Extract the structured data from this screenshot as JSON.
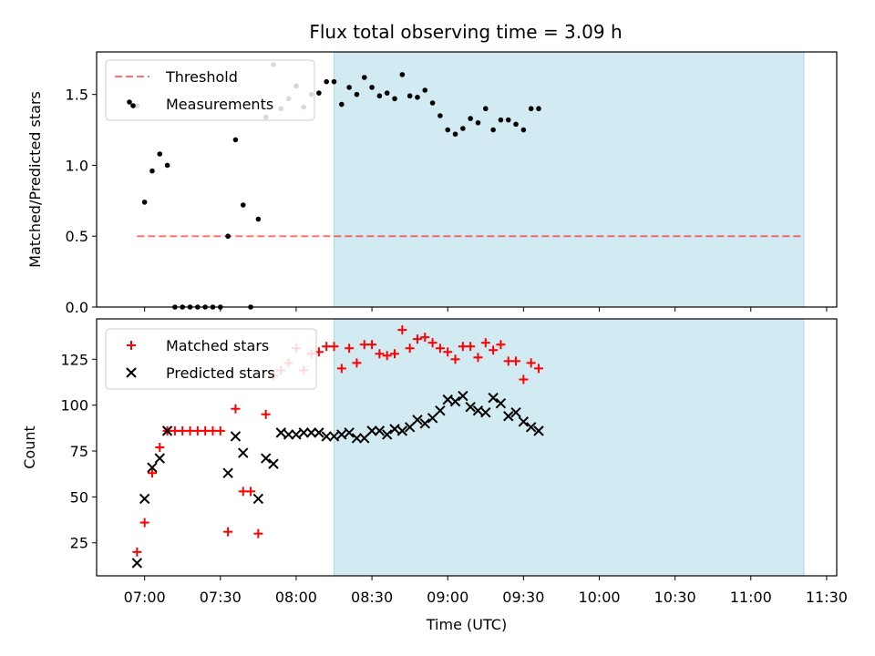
{
  "figure_title": "Flux total observing time = 3.09 h",
  "colors": {
    "shade": "#add8e6",
    "threshold": "#ff0000",
    "matched": "#ff0000",
    "predicted": "#000000",
    "measurement": "#000000"
  },
  "chart_data": [
    {
      "type": "scatter",
      "title": "Flux total observing time = 3.09 h",
      "ylabel": "Matched/Predicted stars",
      "xlabel": "",
      "ylim": [
        0,
        1.8
      ],
      "yticks": [
        0.0,
        0.5,
        1.0,
        1.5
      ],
      "ytick_labels": [
        "0.0",
        "0.5",
        "1.0",
        "1.5"
      ],
      "legend": {
        "placement": "upper-left",
        "entries": [
          "Threshold",
          "Measurements"
        ]
      },
      "shaded_interval": [
        "08:15",
        "11:21"
      ],
      "threshold": {
        "name": "Threshold",
        "value": 0.5,
        "x_start": "06:57",
        "x_end": "11:21",
        "style": "dashed"
      },
      "series": [
        {
          "name": "Measurements",
          "marker": "dot",
          "points": [
            [
              "06:57",
              1.42
            ],
            [
              "07:00",
              0.74
            ],
            [
              "07:03",
              0.96
            ],
            [
              "07:06",
              1.08
            ],
            [
              "07:09",
              1.0
            ],
            [
              "07:12",
              0.0
            ],
            [
              "07:15",
              0.0
            ],
            [
              "07:18",
              0.0
            ],
            [
              "07:21",
              0.0
            ],
            [
              "07:24",
              0.0
            ],
            [
              "07:27",
              0.0
            ],
            [
              "07:30",
              0.0
            ],
            [
              "07:33",
              0.5
            ],
            [
              "07:36",
              1.18
            ],
            [
              "07:39",
              0.72
            ],
            [
              "07:42",
              0.0
            ],
            [
              "07:45",
              0.62
            ],
            [
              "07:48",
              1.34
            ],
            [
              "07:51",
              1.71
            ],
            [
              "07:54",
              1.4
            ],
            [
              "07:57",
              1.47
            ],
            [
              "08:00",
              1.56
            ],
            [
              "08:03",
              1.41
            ],
            [
              "08:06",
              1.5
            ],
            [
              "08:09",
              1.51
            ],
            [
              "08:12",
              1.59
            ],
            [
              "08:15",
              1.59
            ],
            [
              "08:18",
              1.43
            ],
            [
              "08:21",
              1.55
            ],
            [
              "08:24",
              1.5
            ],
            [
              "08:27",
              1.62
            ],
            [
              "08:30",
              1.55
            ],
            [
              "08:33",
              1.49
            ],
            [
              "08:36",
              1.51
            ],
            [
              "08:39",
              1.47
            ],
            [
              "08:42",
              1.64
            ],
            [
              "08:45",
              1.49
            ],
            [
              "08:48",
              1.48
            ],
            [
              "08:51",
              1.53
            ],
            [
              "08:54",
              1.44
            ],
            [
              "08:57",
              1.35
            ],
            [
              "09:00",
              1.25
            ],
            [
              "09:03",
              1.22
            ],
            [
              "09:06",
              1.26
            ],
            [
              "09:09",
              1.33
            ],
            [
              "09:12",
              1.3
            ],
            [
              "09:15",
              1.4
            ],
            [
              "09:18",
              1.25
            ],
            [
              "09:21",
              1.32
            ],
            [
              "09:24",
              1.32
            ],
            [
              "09:27",
              1.29
            ],
            [
              "09:30",
              1.25
            ],
            [
              "09:33",
              1.4
            ],
            [
              "09:36",
              1.4
            ]
          ]
        }
      ]
    },
    {
      "type": "scatter",
      "title": "",
      "ylabel": "Count",
      "xlabel": "Time (UTC)",
      "ylim": [
        7,
        147
      ],
      "yticks": [
        25,
        50,
        75,
        100,
        125
      ],
      "xlim": [
        "06:41",
        "11:34"
      ],
      "xticks": [
        "07:00",
        "07:30",
        "08:00",
        "08:30",
        "09:00",
        "09:30",
        "10:00",
        "10:30",
        "11:00",
        "11:30"
      ],
      "legend": {
        "placement": "upper-left",
        "entries": [
          "Matched stars",
          "Predicted stars"
        ]
      },
      "shaded_interval": [
        "08:15",
        "11:21"
      ],
      "x": [
        "06:57",
        "07:00",
        "07:03",
        "07:06",
        "07:09",
        "07:12",
        "07:15",
        "07:18",
        "07:21",
        "07:24",
        "07:27",
        "07:30",
        "07:33",
        "07:36",
        "07:39",
        "07:42",
        "07:45",
        "07:48",
        "07:51",
        "07:54",
        "07:57",
        "08:00",
        "08:03",
        "08:06",
        "08:09",
        "08:12",
        "08:15",
        "08:18",
        "08:21",
        "08:24",
        "08:27",
        "08:30",
        "08:33",
        "08:36",
        "08:39",
        "08:42",
        "08:45",
        "08:48",
        "08:51",
        "08:54",
        "08:57",
        "09:00",
        "09:03",
        "09:06",
        "09:09",
        "09:12",
        "09:15",
        "09:18",
        "09:21",
        "09:24",
        "09:27",
        "09:30",
        "09:33",
        "09:36"
      ],
      "series": [
        {
          "name": "Matched stars",
          "marker": "plus",
          "values": [
            20,
            36,
            63,
            77,
            86,
            86,
            86,
            86,
            86,
            86,
            86,
            86,
            31,
            98,
            53,
            53,
            30,
            95,
            116,
            119,
            123,
            131,
            119,
            128,
            129,
            132,
            132,
            120,
            131,
            123,
            133,
            133,
            128,
            127,
            128,
            141,
            131,
            136,
            137,
            134,
            131,
            129,
            125,
            132,
            132,
            126,
            134,
            130,
            133,
            124,
            124,
            114,
            123,
            120
          ]
        },
        {
          "name": "Predicted stars",
          "marker": "x",
          "values": [
            14,
            49,
            66,
            71,
            86,
            null,
            null,
            null,
            null,
            null,
            null,
            null,
            63,
            83,
            74,
            null,
            49,
            71,
            68,
            85,
            84,
            84,
            85,
            85,
            85,
            83,
            83,
            84,
            85,
            82,
            82,
            86,
            86,
            84,
            87,
            86,
            88,
            92,
            90,
            93,
            97,
            103,
            102,
            105,
            99,
            97,
            96,
            104,
            101,
            94,
            96,
            91,
            88,
            86
          ]
        }
      ]
    }
  ]
}
